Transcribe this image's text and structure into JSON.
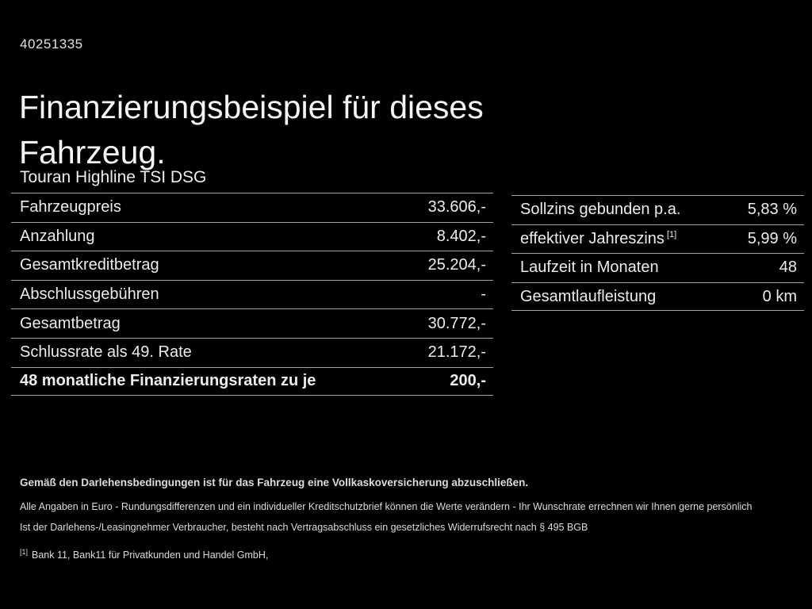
{
  "page": {
    "ref_number": "40251335",
    "title": "Finanzierungsbeispiel für dieses Fahrzeug.",
    "vehicle": "Touran Highline TSI DSG"
  },
  "colors": {
    "background": "#000000",
    "text": "#f0f0f0",
    "divider": "#a3a3a3"
  },
  "finance_table": {
    "rows": [
      {
        "label": "Fahrzeugpreis",
        "value": "33.606,-"
      },
      {
        "label": "Anzahlung",
        "value": "8.402,-"
      },
      {
        "label": "Gesamtkreditbetrag",
        "value": "25.204,-"
      },
      {
        "label": "Abschlussgebühren",
        "value": "-"
      },
      {
        "label": "Gesamtbetrag",
        "value": "30.772,-"
      },
      {
        "label": "Schlussrate als 49. Rate",
        "value": "21.172,-"
      },
      {
        "label": "48 monatliche Finanzierungsraten zu je",
        "value": "200,-"
      }
    ]
  },
  "terms_table": {
    "rows": [
      {
        "label": "Sollzins gebunden p.a.",
        "sup": "",
        "value": "5,83 %"
      },
      {
        "label": "effektiver Jahreszins",
        "sup": "[1]",
        "value": "5,99 %"
      },
      {
        "label": "Laufzeit in Monaten",
        "sup": "",
        "value": "48"
      },
      {
        "label": "Gesamtlaufleistung",
        "sup": "",
        "value": "0 km"
      }
    ]
  },
  "footnotes": {
    "line1": "Gemäß den Darlehensbedingungen ist für das Fahrzeug eine Vollkaskoversicherung abzuschließen.",
    "line2": "Alle Angaben in Euro - Rundungsdifferenzen und ein individueller Kreditschutzbrief können die Werte verändern - Ihr Wunschrate errechnen wir Ihnen gerne persönlich",
    "line3": "Ist der Darlehens-/Leasingnehmer Verbraucher, besteht nach Vertragsabschluss ein gesetzliches Widerrufsrecht nach § 495 BGB",
    "line4_marker": "[1]",
    "line4": "Bank 11, Bank11 für Privatkunden und Handel GmbH,"
  }
}
